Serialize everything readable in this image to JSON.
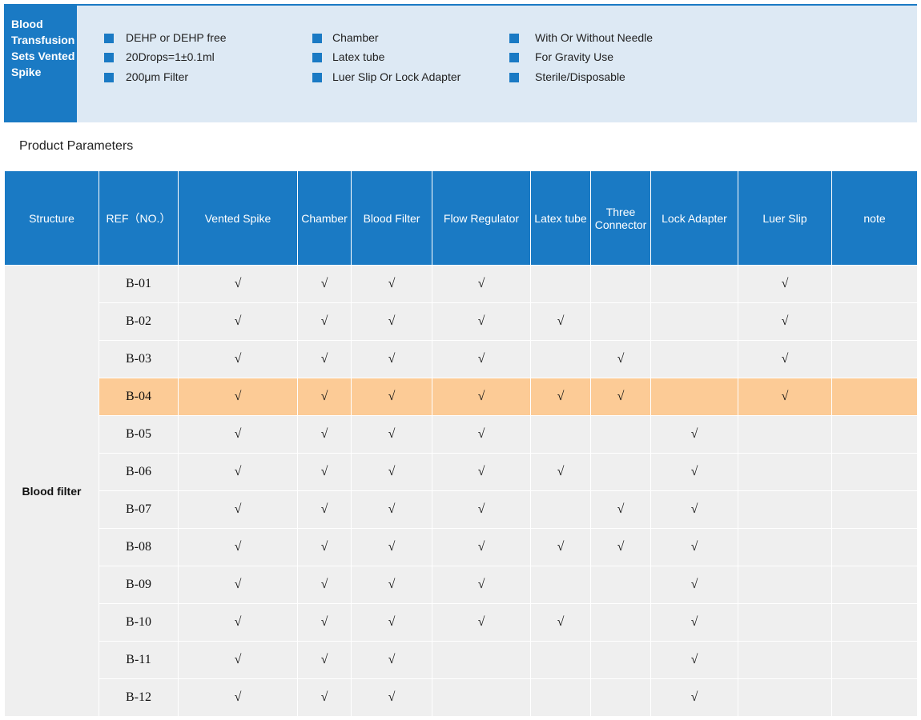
{
  "header": {
    "title": "Blood Transfusion Sets Vented Spike",
    "features": [
      [
        "DEHP or DEHP free",
        "20Drops=1±0.1ml",
        "200μm Filter"
      ],
      [
        "Chamber",
        "Latex tube",
        "Luer Slip Or Lock Adapter"
      ],
      [
        "With Or Without Needle",
        "For Gravity Use",
        "Sterile/Disposable"
      ]
    ]
  },
  "section_title": "Product Parameters",
  "table": {
    "columns": [
      "Structure",
      "REF（NO.）",
      "Vented Spike",
      "Chamber",
      "Blood Filter",
      "Flow Regulator",
      "Latex tube",
      "Three Connector",
      "Lock Adapter",
      "Luer Slip",
      "note"
    ],
    "structure": "Blood filter",
    "highlight_row": 3,
    "rows": [
      [
        "B-01",
        "√",
        "√",
        "√",
        "√",
        null,
        null,
        null,
        "√",
        null
      ],
      [
        "B-02",
        "√",
        "√",
        "√",
        "√",
        "√",
        null,
        null,
        "√",
        null
      ],
      [
        "B-03",
        "√",
        "√",
        "√",
        "√",
        null,
        "√",
        null,
        "√",
        null
      ],
      [
        "B-04",
        "√",
        "√",
        "√",
        "√",
        "√",
        "√",
        null,
        "√",
        null
      ],
      [
        "B-05",
        "√",
        "√",
        "√",
        "√",
        null,
        null,
        "√",
        null,
        null
      ],
      [
        "B-06",
        "√",
        "√",
        "√",
        "√",
        "√",
        null,
        "√",
        null,
        null
      ],
      [
        "B-07",
        "√",
        "√",
        "√",
        "√",
        null,
        "√",
        "√",
        null,
        null
      ],
      [
        "B-08",
        "√",
        "√",
        "√",
        "√",
        "√",
        "√",
        "√",
        null,
        null
      ],
      [
        "B-09",
        "√",
        "√",
        "√",
        "√",
        null,
        null,
        "√",
        null,
        null
      ],
      [
        "B-10",
        "√",
        "√",
        "√",
        "√",
        "√",
        null,
        "√",
        null,
        null
      ],
      [
        "B-11",
        "√",
        "√",
        "√",
        null,
        null,
        null,
        "√",
        null,
        null
      ],
      [
        "B-12",
        "√",
        "√",
        "√",
        null,
        null,
        null,
        "√",
        null,
        null
      ]
    ]
  }
}
